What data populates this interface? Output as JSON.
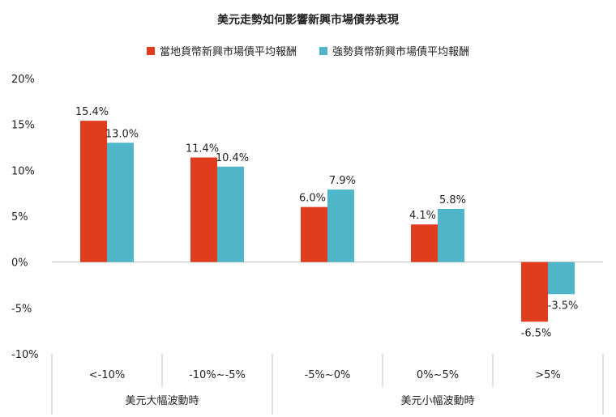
{
  "colors": {
    "series1": "#E03C1E",
    "series2": "#4EB6C8",
    "axis": "#bfbfbf",
    "text": "#222222"
  },
  "chart_data": {
    "type": "bar",
    "title": "美元走勢如何影響新興市場債券表現",
    "xlabel": "",
    "ylabel": "",
    "categories": [
      "<-10%",
      "-10%~-5%",
      "-5%~0%",
      "0%~5%",
      ">5%"
    ],
    "series": [
      {
        "name": "當地貨幣新興市場債平均報酬",
        "values": [
          15.4,
          11.4,
          6.0,
          4.1,
          -6.5
        ],
        "labels": [
          "15.4%",
          "11.4%",
          "6.0%",
          "4.1%",
          "-6.5%"
        ]
      },
      {
        "name": "強勢貨幣新興市場債平均報酬",
        "values": [
          13.0,
          10.4,
          7.9,
          5.8,
          -3.5
        ],
        "labels": [
          "13.0%",
          "10.4%",
          "7.9%",
          "5.8%",
          "-3.5%"
        ]
      }
    ],
    "ylim": [
      -10,
      20
    ],
    "yticks": [
      20,
      15,
      10,
      5,
      0,
      -5,
      -10
    ],
    "ytick_labels": [
      "20%",
      "15%",
      "10%",
      "5%",
      "0%",
      "-5%",
      "-10%"
    ],
    "groups": [
      {
        "label": "美元大幅波動時",
        "categories": [
          "<-10%",
          "-10%~-5%"
        ]
      },
      {
        "label": "美元小幅波動時",
        "categories": [
          "-5%~0%",
          "0%~5%",
          ">5%"
        ]
      }
    ],
    "legend_position": "top",
    "grid": false
  }
}
